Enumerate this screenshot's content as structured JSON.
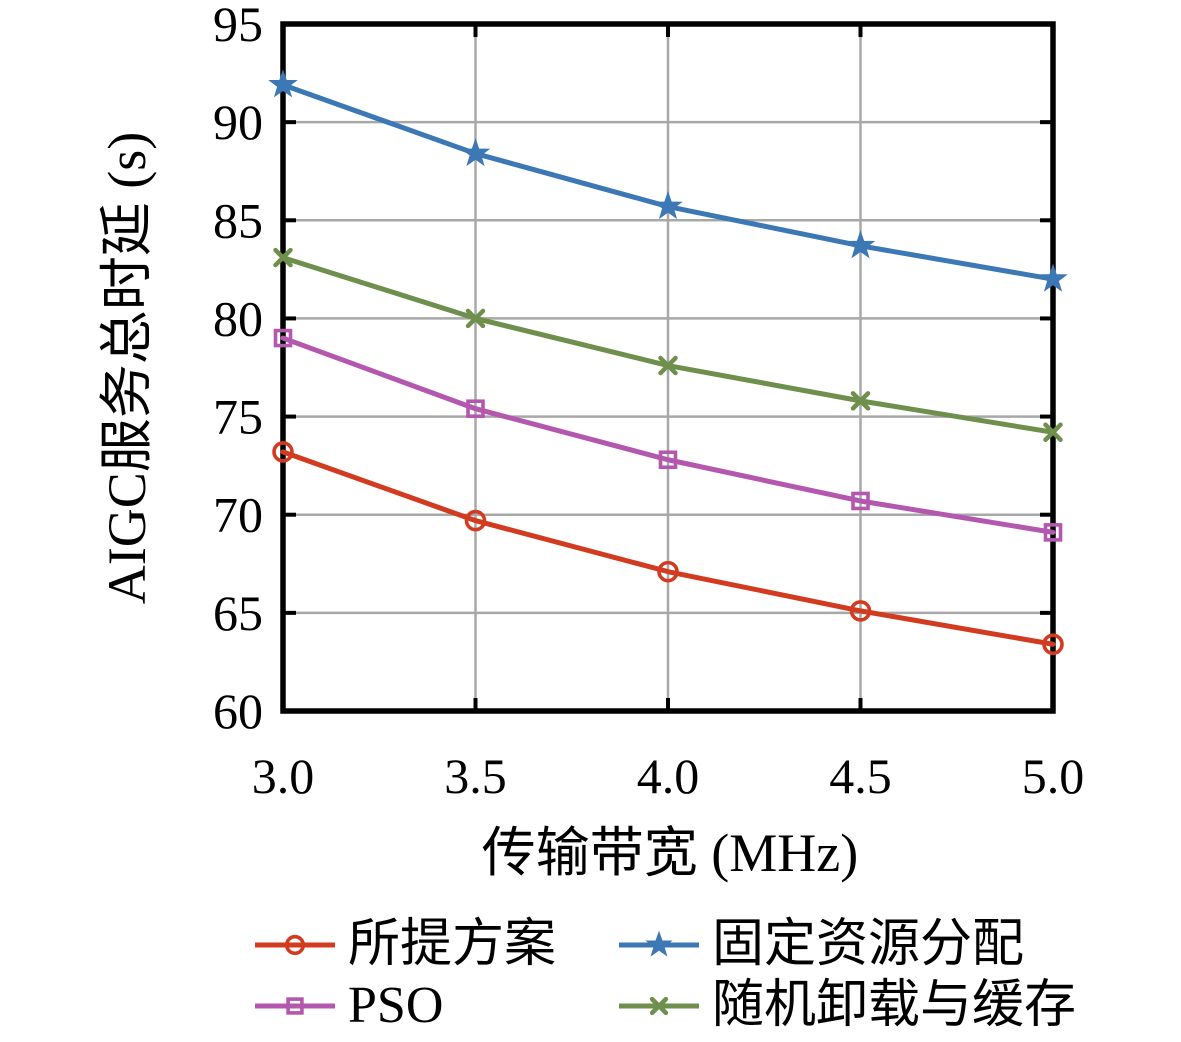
{
  "chart_data": {
    "type": "line",
    "title": "",
    "xlabel": "传输带宽 (MHz)",
    "ylabel": "AIGC服务总时延 (s)",
    "x": [
      3.0,
      3.5,
      4.0,
      4.5,
      5.0
    ],
    "x_ticks": [
      "3.0",
      "3.5",
      "4.0",
      "4.5",
      "5.0"
    ],
    "y_ticks": [
      60,
      65,
      70,
      75,
      80,
      85,
      90,
      95
    ],
    "xlim": [
      3.0,
      5.0
    ],
    "ylim": [
      60,
      95
    ],
    "grid": true,
    "legend_position": "below-two-columns",
    "colors": {
      "axis": "#000000",
      "gridline": "#a8a8a8",
      "background": "#ffffff"
    },
    "series": [
      {
        "name": "所提方案",
        "color": "#d23b20",
        "marker": "circle-open",
        "values": [
          73.2,
          69.7,
          67.1,
          65.1,
          63.4
        ]
      },
      {
        "name": "固定资源分配",
        "color": "#3c78b5",
        "marker": "star",
        "values": [
          91.9,
          88.4,
          85.7,
          83.7,
          82.0
        ]
      },
      {
        "name": "PSO",
        "color": "#b457ae",
        "marker": "square-open",
        "values": [
          79.0,
          75.4,
          72.8,
          70.7,
          69.1
        ]
      },
      {
        "name": "随机卸载与缓存",
        "color": "#6f8f4c",
        "marker": "x",
        "values": [
          83.1,
          80.0,
          77.6,
          75.8,
          74.2
        ]
      }
    ]
  }
}
